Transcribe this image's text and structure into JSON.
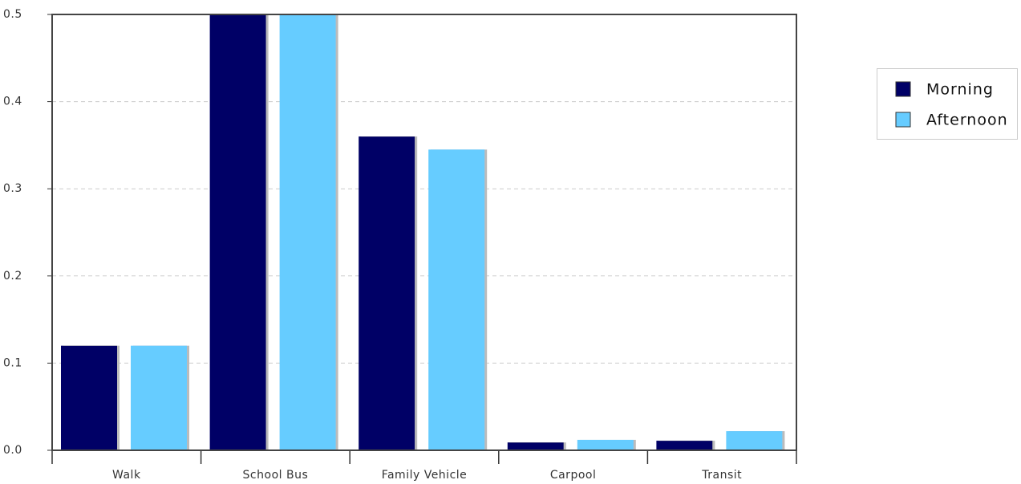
{
  "chart_data": {
    "type": "bar",
    "categories": [
      "Walk",
      "School Bus",
      "Family Vehicle",
      "Carpool",
      "Transit"
    ],
    "series": [
      {
        "name": "Morning",
        "color": "#000066",
        "values": [
          0.12,
          0.5,
          0.36,
          0.009,
          0.011
        ]
      },
      {
        "name": "Afternoon",
        "color": "#66ccff",
        "values": [
          0.12,
          0.5,
          0.345,
          0.012,
          0.022
        ]
      }
    ],
    "ylim": [
      0,
      0.5
    ],
    "yticks": [
      {
        "value": 0,
        "label": "0.0"
      },
      0.1,
      0.2,
      0.3,
      0.4,
      0.5
    ],
    "grid": true,
    "legend": "right"
  }
}
